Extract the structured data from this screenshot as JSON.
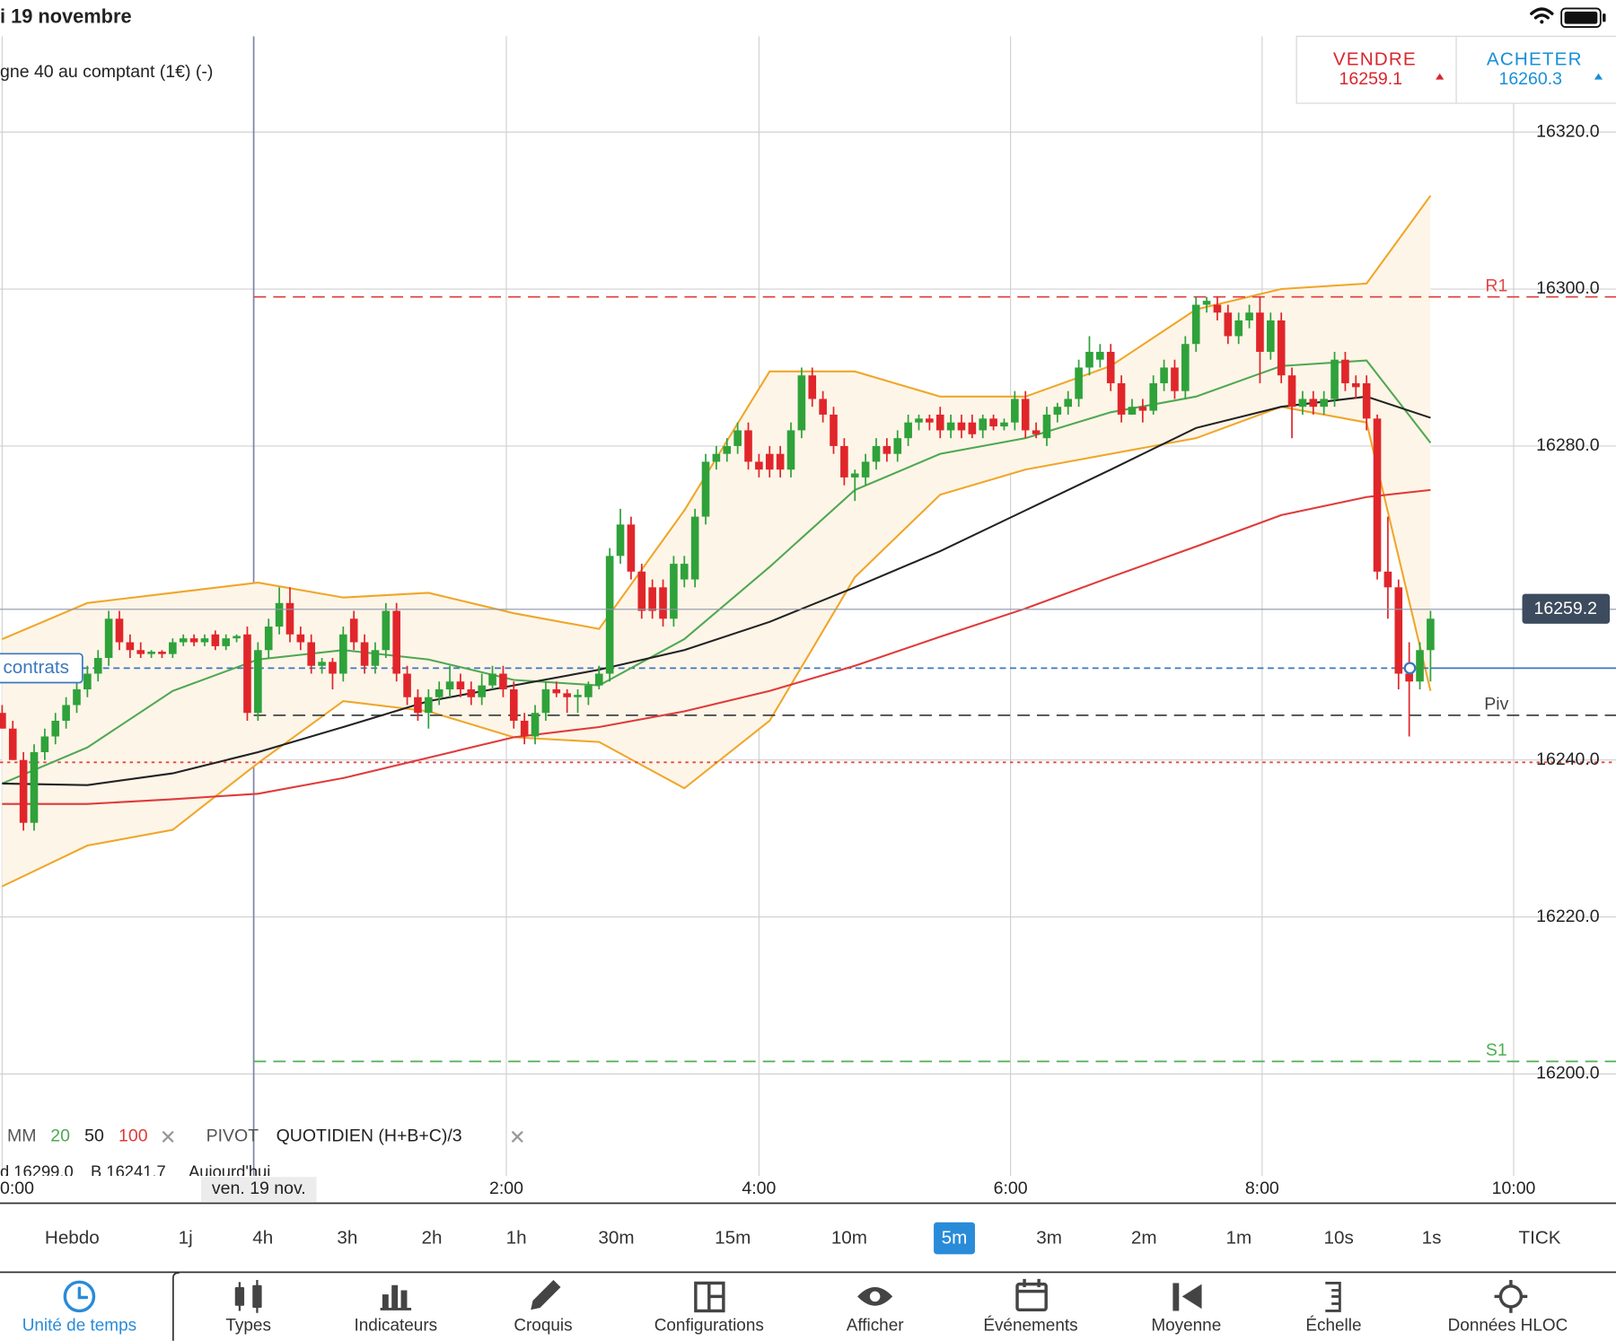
{
  "status_bar": {
    "date": "i 19 novembre"
  },
  "instrument": {
    "title": "gne 40 au comptant (1€) (-)"
  },
  "trade_buttons": {
    "sell": {
      "label": "VENDRE",
      "price": 16259.1
    },
    "buy": {
      "label": "ACHETER",
      "price": 16260.3
    }
  },
  "chart_data": {
    "type": "candlestick",
    "up_color": "#2fa23a",
    "down_color": "#e0262b",
    "xlim": [
      -0.2,
      151.4
    ],
    "ylim": [
      16183.6,
      16332.2
    ],
    "xticks": [
      {
        "value": 0,
        "label": "0:00"
      },
      {
        "value": 23.6,
        "label": "ven. 19 nov."
      },
      {
        "value": 47.3,
        "label": "2:00"
      },
      {
        "value": 71,
        "label": "4:00"
      },
      {
        "value": 94.6,
        "label": "6:00"
      },
      {
        "value": 118.2,
        "label": "8:00"
      },
      {
        "value": 141.8,
        "label": "10:00"
      }
    ],
    "yticks": [
      {
        "value": 16200,
        "label": "16200.0"
      },
      {
        "value": 16220,
        "label": "16220.0"
      },
      {
        "value": 16240,
        "label": "16240.0"
      },
      {
        "value": 16280,
        "label": "16280.0"
      },
      {
        "value": 16300,
        "label": "16300.0"
      },
      {
        "value": 16320,
        "label": "16320.0"
      }
    ],
    "grid": true,
    "candles": [
      [
        16246,
        16247,
        16244,
        16244
      ],
      [
        16244,
        16245,
        16240,
        16240
      ],
      [
        16240,
        16241,
        16231,
        16232
      ],
      [
        16232,
        16242,
        16231,
        16241
      ],
      [
        16241,
        16244,
        16240,
        16243
      ],
      [
        16243,
        16246,
        16242,
        16245
      ],
      [
        16245,
        16248,
        16244,
        16247
      ],
      [
        16247,
        16250,
        16246,
        16249
      ],
      [
        16249,
        16252,
        16248,
        16251
      ],
      [
        16251,
        16254,
        16250,
        16253
      ],
      [
        16253,
        16259,
        16252,
        16258
      ],
      [
        16258,
        16259,
        16254,
        16255
      ],
      [
        16255,
        16256,
        16253,
        16254
      ],
      [
        16254,
        16255,
        16253,
        16253.5
      ],
      [
        16253.5,
        16254,
        16253,
        16253.8
      ],
      [
        16253.8,
        16254,
        16253,
        16253.5
      ],
      [
        16253.5,
        16255.5,
        16253,
        16255
      ],
      [
        16255,
        16256,
        16254.5,
        16255.5
      ],
      [
        16255.5,
        16256,
        16254.5,
        16255
      ],
      [
        16255,
        16256,
        16254.5,
        16255.5
      ],
      [
        16256,
        16256.5,
        16254,
        16254.5
      ],
      [
        16254.5,
        16256,
        16254,
        16255.5
      ],
      [
        16255.5,
        16256,
        16255,
        16255.8
      ],
      [
        16256,
        16257,
        16245,
        16246
      ],
      [
        16246,
        16255,
        16245,
        16254
      ],
      [
        16254,
        16258,
        16253,
        16257
      ],
      [
        16257,
        16262,
        16256,
        16260
      ],
      [
        16260,
        16262,
        16255,
        16256
      ],
      [
        16256,
        16257,
        16254,
        16255
      ],
      [
        16255,
        16256,
        16251,
        16252
      ],
      [
        16252,
        16253,
        16251,
        16252.5
      ],
      [
        16252.5,
        16253,
        16249,
        16251
      ],
      [
        16251,
        16257,
        16250,
        16256
      ],
      [
        16258,
        16259,
        16254,
        16255
      ],
      [
        16255,
        16256,
        16251,
        16252
      ],
      [
        16252,
        16255,
        16251,
        16254
      ],
      [
        16254,
        16260,
        16253,
        16259
      ],
      [
        16259,
        16260,
        16250,
        16251
      ],
      [
        16251,
        16252,
        16247,
        16248
      ],
      [
        16248,
        16249,
        16245,
        16246
      ],
      [
        16246,
        16249,
        16244,
        16248
      ],
      [
        16248,
        16250,
        16247,
        16249
      ],
      [
        16249,
        16252,
        16248,
        16250
      ],
      [
        16250,
        16251,
        16248,
        16249
      ],
      [
        16249,
        16250,
        16247,
        16248
      ],
      [
        16248,
        16251,
        16247,
        16249.5
      ],
      [
        16249.5,
        16252,
        16249,
        16251
      ],
      [
        16251,
        16252,
        16248,
        16249
      ],
      [
        16249,
        16250,
        16244,
        16245
      ],
      [
        16245,
        16246,
        16242,
        16243
      ],
      [
        16243,
        16247,
        16242,
        16246
      ],
      [
        16246,
        16250,
        16245,
        16249
      ],
      [
        16249,
        16250,
        16248,
        16248.5
      ],
      [
        16248.5,
        16249,
        16246,
        16248
      ],
      [
        16248,
        16249,
        16246,
        16248.3
      ],
      [
        16248,
        16250,
        16247,
        16249.5
      ],
      [
        16249.5,
        16252,
        16249,
        16251
      ],
      [
        16251,
        16267,
        16250,
        16266
      ],
      [
        16266,
        16272,
        16265,
        16270
      ],
      [
        16270,
        16271,
        16263,
        16264
      ],
      [
        16264,
        16265,
        16258,
        16259
      ],
      [
        16262,
        16263,
        16258,
        16259
      ],
      [
        16262,
        16263,
        16257,
        16258
      ],
      [
        16258,
        16266,
        16257,
        16265
      ],
      [
        16263,
        16266,
        16262,
        16265
      ],
      [
        16263,
        16272,
        16262,
        16271
      ],
      [
        16271,
        16279,
        16270,
        16278
      ],
      [
        16278,
        16280,
        16277,
        16279
      ],
      [
        16279,
        16281,
        16278,
        16280
      ],
      [
        16280,
        16283,
        16279,
        16282
      ],
      [
        16282,
        16283,
        16277,
        16278
      ],
      [
        16278,
        16279,
        16276,
        16277
      ],
      [
        16279,
        16280,
        16276,
        16277
      ],
      [
        16279,
        16280,
        16276,
        16277
      ],
      [
        16277,
        16283,
        16276,
        16282
      ],
      [
        16282,
        16290,
        16281,
        16289
      ],
      [
        16289,
        16290,
        16285,
        16286
      ],
      [
        16286,
        16287,
        16283,
        16284
      ],
      [
        16284,
        16285,
        16279,
        16280
      ],
      [
        16280,
        16281,
        16275,
        16276
      ],
      [
        16276,
        16277,
        16273,
        16276.5
      ],
      [
        16276,
        16279,
        16275,
        16278
      ],
      [
        16278,
        16281,
        16277,
        16280
      ],
      [
        16280,
        16281,
        16278,
        16279
      ],
      [
        16279,
        16282,
        16278,
        16281
      ],
      [
        16281,
        16284,
        16280,
        16283
      ],
      [
        16283,
        16284,
        16282,
        16283.5
      ],
      [
        16283.5,
        16284,
        16282,
        16283
      ],
      [
        16284,
        16285,
        16281,
        16282
      ],
      [
        16282,
        16284,
        16281,
        16283
      ],
      [
        16283,
        16284,
        16281,
        16282
      ],
      [
        16283,
        16284,
        16281,
        16281.5
      ],
      [
        16282,
        16284,
        16281,
        16283.5
      ],
      [
        16283.5,
        16284,
        16282,
        16282.5
      ],
      [
        16282.5,
        16283.5,
        16282,
        16283
      ],
      [
        16283,
        16287,
        16282,
        16286
      ],
      [
        16286,
        16287,
        16281,
        16282
      ],
      [
        16282,
        16283,
        16281,
        16281.5
      ],
      [
        16281,
        16285,
        16280,
        16284
      ],
      [
        16284,
        16285.5,
        16283,
        16285
      ],
      [
        16285,
        16287,
        16284,
        16286
      ],
      [
        16286,
        16291,
        16285,
        16290
      ],
      [
        16290,
        16294,
        16289,
        16292
      ],
      [
        16291,
        16293,
        16290,
        16292
      ],
      [
        16292,
        16293,
        16287,
        16288
      ],
      [
        16288,
        16289,
        16283,
        16284
      ],
      [
        16284,
        16286,
        16284,
        16285
      ],
      [
        16285,
        16286,
        16283,
        16284.5
      ],
      [
        16284.5,
        16289,
        16284,
        16288
      ],
      [
        16288,
        16291,
        16287,
        16290
      ],
      [
        16290,
        16291,
        16286,
        16287
      ],
      [
        16287,
        16294,
        16286,
        16293
      ],
      [
        16293,
        16299,
        16292,
        16298
      ],
      [
        16298,
        16299,
        16297,
        16298.5
      ],
      [
        16298,
        16299,
        16296,
        16297
      ],
      [
        16297,
        16298,
        16293,
        16294
      ],
      [
        16294,
        16297,
        16293,
        16296
      ],
      [
        16296,
        16298,
        16295,
        16297
      ],
      [
        16297,
        16299,
        16288,
        16292
      ],
      [
        16292,
        16297,
        16291,
        16296
      ],
      [
        16296,
        16297,
        16288,
        16289
      ],
      [
        16289,
        16290,
        16281,
        16285
      ],
      [
        16285,
        16287,
        16284,
        16286
      ],
      [
        16286,
        16287,
        16284,
        16285
      ],
      [
        16285,
        16287,
        16284,
        16286
      ],
      [
        16286,
        16292,
        16285,
        16291
      ],
      [
        16291,
        16292,
        16287,
        16288
      ],
      [
        16288,
        16289,
        16286,
        16287.5
      ],
      [
        16288,
        16289,
        16282,
        16283.5
      ],
      [
        16283.5,
        16284,
        16263,
        16264
      ],
      [
        16264,
        16271,
        16258,
        16262
      ],
      [
        16262,
        16263,
        16249,
        16251
      ],
      [
        16251,
        16255,
        16243,
        16250
      ],
      [
        16250,
        16255,
        16249,
        16254
      ],
      [
        16254,
        16259,
        16250,
        16258
      ]
    ],
    "x": [
      0,
      8,
      16,
      24,
      32,
      40,
      48,
      56,
      64,
      72,
      80,
      88,
      96,
      104,
      112,
      120,
      128,
      134
    ],
    "moving_averages": [
      {
        "name": "20",
        "color": "#4fa852",
        "values": [
          16237,
          16241.6,
          16248.8,
          16252.8,
          16254,
          16252.8,
          16250.2,
          16249.5,
          16255.4,
          16264.6,
          16274.4,
          16279,
          16281,
          16284.3,
          16286.3,
          16290.2,
          16290.9,
          16280.4
        ]
      },
      {
        "name": "50",
        "color": "#222222",
        "values": [
          16237,
          16236.8,
          16238.3,
          16241,
          16244.2,
          16247.5,
          16249.5,
          16251.5,
          16254,
          16257.6,
          16262,
          16266.6,
          16271.8,
          16277,
          16282.3,
          16285,
          16286.3,
          16283.6
        ]
      },
      {
        "name": "100",
        "color": "#e03a3a",
        "values": [
          16234.4,
          16234.4,
          16235,
          16235.7,
          16237.7,
          16240.3,
          16242.9,
          16244.2,
          16246.2,
          16248.8,
          16252,
          16255.7,
          16259.3,
          16263.3,
          16267.2,
          16271.2,
          16273.5,
          16274.4
        ]
      }
    ],
    "bollinger": {
      "color": "#f0a628",
      "fill": "#fdf5e8",
      "upper": [
        16255.4,
        16260,
        16261.3,
        16262.6,
        16260.7,
        16261.3,
        16258.7,
        16256.7,
        16271.8,
        16289.5,
        16289.5,
        16286.3,
        16286.3,
        16290.2,
        16297.4,
        16300,
        16300.7,
        16311.9
      ],
      "lower": [
        16223.9,
        16229.1,
        16231.1,
        16239.6,
        16247.5,
        16246.2,
        16242.9,
        16242.3,
        16236.4,
        16245,
        16263.3,
        16273.8,
        16277,
        16279,
        16281,
        16285,
        16283,
        16248.8
      ]
    },
    "levels": [
      {
        "label": "R1",
        "value": 16299,
        "color": "#e04848"
      },
      {
        "label": "Piv",
        "value": 16245.7,
        "color": "#444444"
      },
      {
        "label": "S1",
        "value": 16201.6,
        "color": "#4cb050"
      },
      {
        "value": 16239.7,
        "color": "#e04848"
      }
    ],
    "position": {
      "label": "contrats",
      "value": 16251.7,
      "color": "#3a78c0"
    },
    "last_price": 16259.2
  },
  "legend": {
    "ma_label": "MM",
    "pivot_label": "PIVOT",
    "pivot_type": "QUOTIDIEN (H+B+C)/3"
  },
  "ohlc_strip": [
    "d 16299.0",
    "B 16241.7",
    "Aujourd'hui"
  ],
  "timeframes": {
    "items": [
      "Hebdo",
      "1j",
      "4h",
      "3h",
      "2h",
      "1h",
      "30m",
      "15m",
      "10m",
      "5m",
      "3m",
      "2m",
      "1m",
      "10s",
      "1s",
      "TICK"
    ],
    "selected": 9
  },
  "toolbar": {
    "items": [
      "Unité de temps",
      "Types",
      "Indicateurs",
      "Croquis",
      "Configurations",
      "Afficher",
      "Événements",
      "Moyenne",
      "Échelle",
      "Données HLOC"
    ],
    "selected": 0
  }
}
